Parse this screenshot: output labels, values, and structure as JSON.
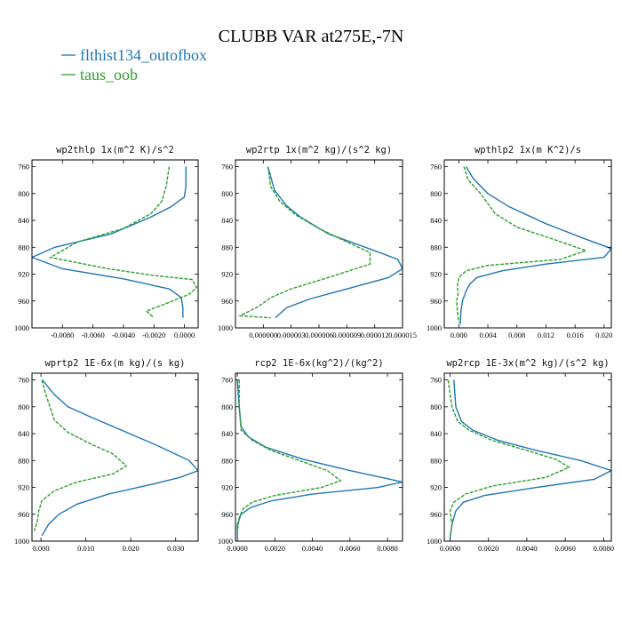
{
  "title": "CLUBB VAR at275E,-7N",
  "legend": [
    {
      "label": "flthist134_outofbox",
      "color": "#1f77b4",
      "dash": "solid"
    },
    {
      "label": "taus_oob",
      "color": "#2ca02c",
      "dash": "dashed"
    }
  ],
  "chart_data": [
    {
      "type": "line",
      "title": "wp2thlp  1x(m^2 K)/s^2",
      "xlim": [
        -0.01,
        0.0009
      ],
      "ylim": [
        1000,
        750
      ],
      "xticks": [
        -0.008,
        -0.006,
        -0.004,
        -0.002,
        0.0
      ],
      "xtick_labels": [
        "-0.0080",
        "-0.0060",
        "-0.0040",
        "-0.0020",
        "0.0000"
      ],
      "yticks": [
        760,
        800,
        840,
        880,
        920,
        960,
        1000
      ],
      "series": [
        {
          "name": "flthist134_outofbox",
          "points": [
            [
              0.0001,
              760
            ],
            [
              0.0001,
              788
            ],
            [
              0.0,
              805
            ],
            [
              -0.0009,
              820
            ],
            [
              -0.0022,
              835
            ],
            [
              -0.0048,
              860
            ],
            [
              -0.0085,
              880
            ],
            [
              -0.01,
              895
            ],
            [
              -0.008,
              912
            ],
            [
              -0.004,
              927
            ],
            [
              -0.001,
              942
            ],
            [
              -0.0002,
              955
            ],
            [
              -0.0001,
              970
            ],
            [
              -0.0001,
              985
            ]
          ]
        },
        {
          "name": "taus_oob",
          "points": [
            [
              -0.001,
              760
            ],
            [
              -0.0012,
              790
            ],
            [
              -0.0015,
              812
            ],
            [
              -0.0022,
              830
            ],
            [
              -0.004,
              852
            ],
            [
              -0.007,
              872
            ],
            [
              -0.0088,
              895
            ],
            [
              -0.005,
              912
            ],
            [
              -0.002,
              922
            ],
            [
              0.0005,
              928
            ],
            [
              0.0008,
              940
            ],
            [
              0.0003,
              950
            ],
            [
              -0.001,
              962
            ],
            [
              -0.0025,
              975
            ],
            [
              -0.002,
              985
            ]
          ]
        }
      ]
    },
    {
      "type": "line",
      "title": "wp2rtp  1x(m^2 kg)/(s^2 kg)",
      "xlim": [
        -3e-06,
        1.5e-05
      ],
      "ylim": [
        1000,
        750
      ],
      "xticks": [
        0.0,
        3e-06,
        6e-06,
        9e-06,
        1.2e-05,
        1.5e-05
      ],
      "xtick_labels": [
        "0.000000",
        "0.000003",
        "0.000006",
        "0.000009",
        "0.000012",
        "0.000015"
      ],
      "yticks": [
        760,
        800,
        840,
        880,
        920,
        960,
        1000
      ],
      "series": [
        {
          "name": "flthist134_outofbox",
          "points": [
            [
              5e-07,
              760
            ],
            [
              1.2e-06,
              795
            ],
            [
              2.5e-06,
              818
            ],
            [
              4e-06,
              835
            ],
            [
              7e-06,
              860
            ],
            [
              1.1e-05,
              880
            ],
            [
              1.45e-05,
              898
            ],
            [
              1.5e-05,
              912
            ],
            [
              1.35e-05,
              925
            ],
            [
              9e-06,
              942
            ],
            [
              5e-06,
              957
            ],
            [
              2.5e-06,
              970
            ],
            [
              1.3e-06,
              985
            ]
          ]
        },
        {
          "name": "taus_oob",
          "points": [
            [
              5e-07,
              760
            ],
            [
              8e-07,
              790
            ],
            [
              1.8e-06,
              812
            ],
            [
              3.5e-06,
              832
            ],
            [
              6e-06,
              852
            ],
            [
              9e-06,
              872
            ],
            [
              1.15e-05,
              888
            ],
            [
              1.15e-05,
              905
            ],
            [
              7e-06,
              925
            ],
            [
              3e-06,
              942
            ],
            [
              8e-07,
              955
            ],
            [
              -5e-07,
              968
            ],
            [
              -2.5e-06,
              982
            ],
            [
              8e-07,
              985
            ]
          ]
        }
      ]
    },
    {
      "type": "line",
      "title": "wpthlp2  1x(m K^2)/s",
      "xlim": [
        -0.002,
        0.021
      ],
      "ylim": [
        1000,
        750
      ],
      "xticks": [
        0.0,
        0.004,
        0.008,
        0.012,
        0.016,
        0.02
      ],
      "xtick_labels": [
        "0.000",
        "0.004",
        "0.008",
        "0.012",
        "0.016",
        "0.020"
      ],
      "yticks": [
        760,
        800,
        840,
        880,
        920,
        960,
        1000
      ],
      "series": [
        {
          "name": "flthist134_outofbox",
          "points": [
            [
              0.001,
              760
            ],
            [
              0.002,
              778
            ],
            [
              0.004,
              800
            ],
            [
              0.007,
              820
            ],
            [
              0.012,
              845
            ],
            [
              0.0175,
              868
            ],
            [
              0.021,
              882
            ],
            [
              0.02,
              895
            ],
            [
              0.012,
              905
            ],
            [
              0.006,
              915
            ],
            [
              0.0025,
              925
            ],
            [
              0.0015,
              935
            ],
            [
              0.001,
              945
            ],
            [
              0.0005,
              960
            ],
            [
              0.0003,
              975
            ],
            [
              0.0002,
              995
            ]
          ]
        },
        {
          "name": "taus_oob",
          "points": [
            [
              0.0007,
              760
            ],
            [
              0.0013,
              780
            ],
            [
              0.003,
              800
            ],
            [
              0.004,
              815
            ],
            [
              0.005,
              830
            ],
            [
              0.008,
              850
            ],
            [
              0.013,
              868
            ],
            [
              0.0175,
              885
            ],
            [
              0.014,
              898
            ],
            [
              0.004,
              907
            ],
            [
              0.001,
              915
            ],
            [
              0.0,
              925
            ],
            [
              -0.0002,
              938
            ],
            [
              -0.0001,
              950
            ],
            [
              -0.0003,
              960
            ],
            [
              -0.0002,
              975
            ],
            [
              0.0,
              992
            ]
          ]
        }
      ]
    },
    {
      "type": "line",
      "title": "wprtp2  1E-6x(m kg)/(s kg)",
      "xlim": [
        -0.002,
        0.035
      ],
      "ylim": [
        1000,
        750
      ],
      "xticks": [
        0.0,
        0.01,
        0.02,
        0.03
      ],
      "xtick_labels": [
        "0.000",
        "0.010",
        "0.020",
        "0.030"
      ],
      "yticks": [
        760,
        800,
        840,
        880,
        920,
        960,
        1000
      ],
      "series": [
        {
          "name": "flthist134_outofbox",
          "points": [
            [
              0.0003,
              760
            ],
            [
              0.003,
              782
            ],
            [
              0.006,
              800
            ],
            [
              0.011,
              815
            ],
            [
              0.018,
              835
            ],
            [
              0.026,
              858
            ],
            [
              0.033,
              880
            ],
            [
              0.035,
              895
            ],
            [
              0.031,
              905
            ],
            [
              0.025,
              915
            ],
            [
              0.015,
              930
            ],
            [
              0.008,
              945
            ],
            [
              0.004,
              960
            ],
            [
              0.0017,
              975
            ],
            [
              0.0002,
              992
            ]
          ]
        },
        {
          "name": "taus_oob",
          "points": [
            [
              0.0002,
              760
            ],
            [
              0.001,
              780
            ],
            [
              0.002,
              800
            ],
            [
              0.003,
              820
            ],
            [
              0.006,
              838
            ],
            [
              0.011,
              855
            ],
            [
              0.016,
              870
            ],
            [
              0.019,
              888
            ],
            [
              0.016,
              900
            ],
            [
              0.008,
              912
            ],
            [
              0.003,
              925
            ],
            [
              0.0002,
              940
            ],
            [
              -0.0005,
              955
            ],
            [
              -0.0008,
              970
            ],
            [
              -0.0015,
              985
            ]
          ]
        }
      ]
    },
    {
      "type": "line",
      "title": "rcp2  1E-6x(kg^2)/(kg^2)",
      "xlim": [
        -0.0001,
        0.0088
      ],
      "ylim": [
        1000,
        750
      ],
      "xticks": [
        0.0,
        0.002,
        0.004,
        0.006,
        0.008
      ],
      "xtick_labels": [
        "0.0000",
        "0.0020",
        "0.0040",
        "0.0060",
        "0.0080"
      ],
      "yticks": [
        760,
        800,
        840,
        880,
        920,
        960,
        1000
      ],
      "series": [
        {
          "name": "flthist134_outofbox",
          "points": [
            [
              0.0,
              760
            ],
            [
              0.0001,
              800
            ],
            [
              0.0002,
              830
            ],
            [
              0.0006,
              845
            ],
            [
              0.0015,
              860
            ],
            [
              0.0035,
              878
            ],
            [
              0.006,
              895
            ],
            [
              0.0088,
              912
            ],
            [
              0.0075,
              920
            ],
            [
              0.004,
              930
            ],
            [
              0.0018,
              940
            ],
            [
              0.0007,
              950
            ],
            [
              0.0002,
              960
            ],
            [
              0.0,
              975
            ],
            [
              0.0,
              995
            ]
          ]
        },
        {
          "name": "taus_oob",
          "points": [
            [
              0.0001,
              760
            ],
            [
              0.0001,
              800
            ],
            [
              0.0002,
              835
            ],
            [
              0.0008,
              850
            ],
            [
              0.0018,
              865
            ],
            [
              0.0033,
              880
            ],
            [
              0.0048,
              895
            ],
            [
              0.0055,
              910
            ],
            [
              0.0045,
              920
            ],
            [
              0.002,
              932
            ],
            [
              0.0008,
              942
            ],
            [
              0.0003,
              952
            ],
            [
              0.0001,
              965
            ],
            [
              0.0,
              985
            ]
          ]
        }
      ]
    },
    {
      "type": "line",
      "title": "wp2rcp  1E-3x(m^2 kg)/(s^2 kg)",
      "xlim": [
        -0.0003,
        0.0084
      ],
      "ylim": [
        1000,
        750
      ],
      "xticks": [
        0.0,
        0.002,
        0.004,
        0.006,
        0.008
      ],
      "xtick_labels": [
        "0.0000",
        "0.0020",
        "0.0040",
        "0.0060",
        "0.0080"
      ],
      "yticks": [
        760,
        800,
        840,
        880,
        920,
        960,
        1000
      ],
      "series": [
        {
          "name": "flthist134_outofbox",
          "points": [
            [
              0.0002,
              760
            ],
            [
              0.0003,
              800
            ],
            [
              0.0006,
              822
            ],
            [
              0.0012,
              835
            ],
            [
              0.0025,
              850
            ],
            [
              0.0045,
              865
            ],
            [
              0.0068,
              880
            ],
            [
              0.0084,
              895
            ],
            [
              0.0075,
              908
            ],
            [
              0.0045,
              920
            ],
            [
              0.0018,
              932
            ],
            [
              0.0007,
              942
            ],
            [
              0.0003,
              955
            ],
            [
              0.0001,
              975
            ],
            [
              0.0,
              995
            ]
          ]
        },
        {
          "name": "taus_oob",
          "points": [
            [
              -0.0001,
              760
            ],
            [
              0.0001,
              800
            ],
            [
              0.0004,
              822
            ],
            [
              0.001,
              835
            ],
            [
              0.0022,
              850
            ],
            [
              0.004,
              865
            ],
            [
              0.0055,
              878
            ],
            [
              0.0062,
              890
            ],
            [
              0.005,
              905
            ],
            [
              0.0022,
              918
            ],
            [
              0.0008,
              930
            ],
            [
              0.0002,
              942
            ],
            [
              0.0,
              955
            ],
            [
              0.0001,
              975
            ],
            [
              0.0,
              995
            ]
          ]
        }
      ]
    }
  ]
}
